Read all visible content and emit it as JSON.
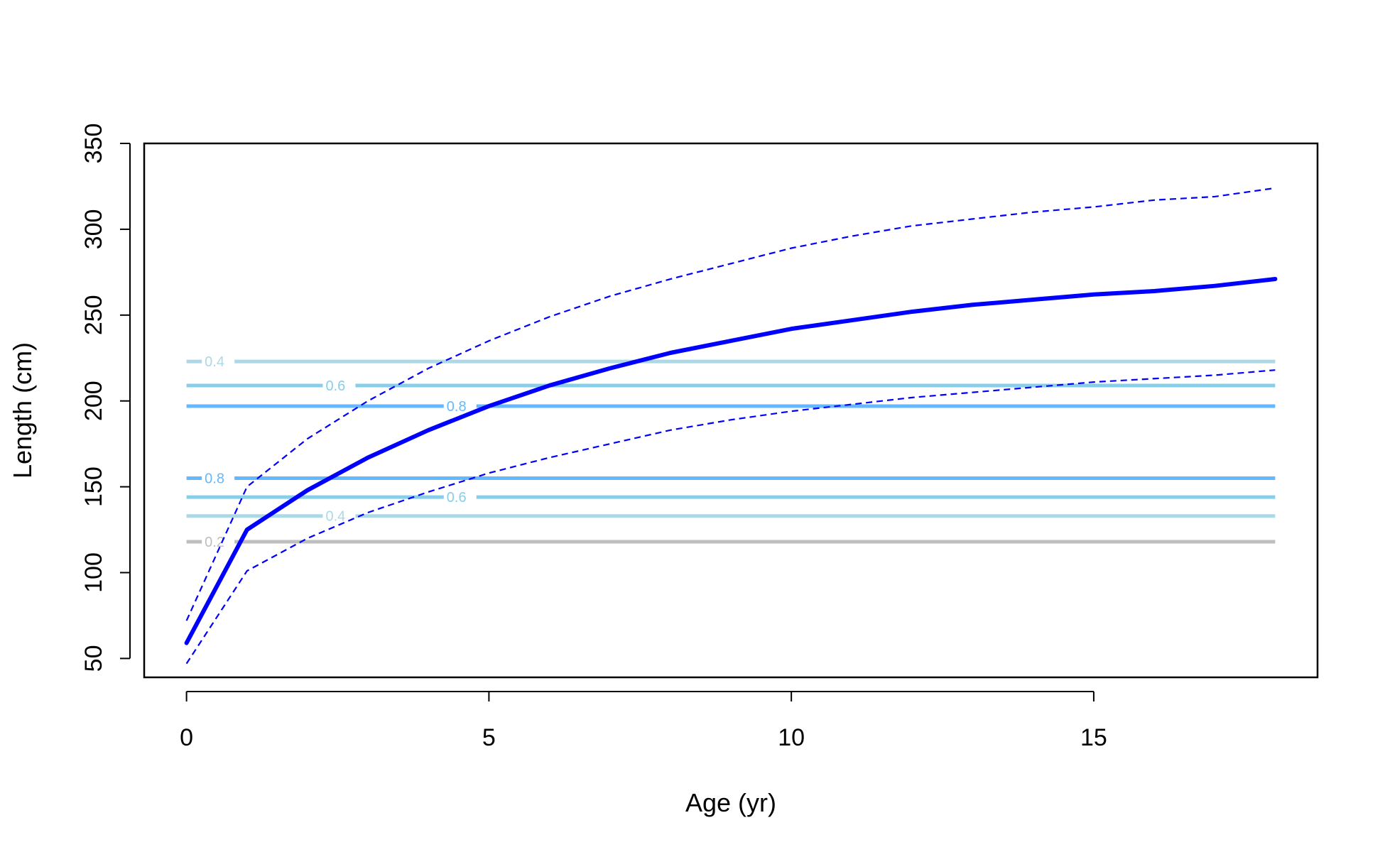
{
  "chart_data": {
    "type": "line",
    "title": "",
    "xlabel": "Age (yr)",
    "ylabel": "Length (cm)",
    "xlim": [
      -0.7,
      18.7
    ],
    "ylim": [
      39,
      350
    ],
    "xticks": [
      0,
      5,
      10,
      15
    ],
    "yticks": [
      50,
      100,
      150,
      200,
      250,
      300,
      350
    ],
    "grid": false,
    "legend": "none",
    "x": [
      0,
      1,
      2,
      3,
      4,
      5,
      6,
      7,
      8,
      9,
      10,
      11,
      12,
      13,
      14,
      15,
      16,
      17,
      18
    ],
    "series": [
      {
        "style": "solid-thick",
        "color": "#0000ff",
        "values": [
          59,
          125,
          148,
          167,
          183,
          197,
          209,
          219,
          228,
          235,
          242,
          247,
          252,
          256,
          259,
          262,
          264,
          267,
          271
        ]
      },
      {
        "style": "dashed",
        "color": "#0000ff",
        "values": [
          72,
          150,
          178,
          200,
          219,
          235,
          249,
          261,
          271,
          280,
          289,
          296,
          302,
          306,
          310,
          313,
          317,
          319,
          324
        ]
      },
      {
        "style": "dashed",
        "color": "#0000ff",
        "values": [
          47,
          101,
          120,
          135,
          147,
          158,
          167,
          175,
          183,
          189,
          194,
          198,
          202,
          205,
          208,
          211,
          213,
          215,
          218
        ]
      }
    ],
    "contours": [
      {
        "level": 0.4,
        "label": "0.4",
        "y": 223,
        "x_start": 0,
        "x_end": 18,
        "label_x": 0.3,
        "color": "#add8e6"
      },
      {
        "level": 0.6,
        "label": "0.6",
        "y": 209,
        "x_start": 0,
        "x_end": 18,
        "label_x": 2.3,
        "color": "#87ceeb"
      },
      {
        "level": 0.8,
        "label": "0.8",
        "y": 197,
        "x_start": 0,
        "x_end": 18,
        "label_x": 4.3,
        "color": "#63b8ff"
      },
      {
        "level": 0.8,
        "label": "0.8",
        "y": 155,
        "x_start": 0,
        "x_end": 18,
        "label_x": 0.3,
        "color": "#63b8ff"
      },
      {
        "level": 0.6,
        "label": "0.6",
        "y": 144,
        "x_start": 0,
        "x_end": 18,
        "label_x": 4.3,
        "color": "#87ceeb"
      },
      {
        "level": 0.4,
        "label": "0.4",
        "y": 133,
        "x_start": 0,
        "x_end": 18,
        "label_x": 2.3,
        "color": "#add8e6"
      },
      {
        "level": 0.2,
        "label": "0.2",
        "y": 118,
        "x_start": 0,
        "x_end": 18,
        "label_x": 0.3,
        "color": "#bebebe"
      }
    ]
  }
}
